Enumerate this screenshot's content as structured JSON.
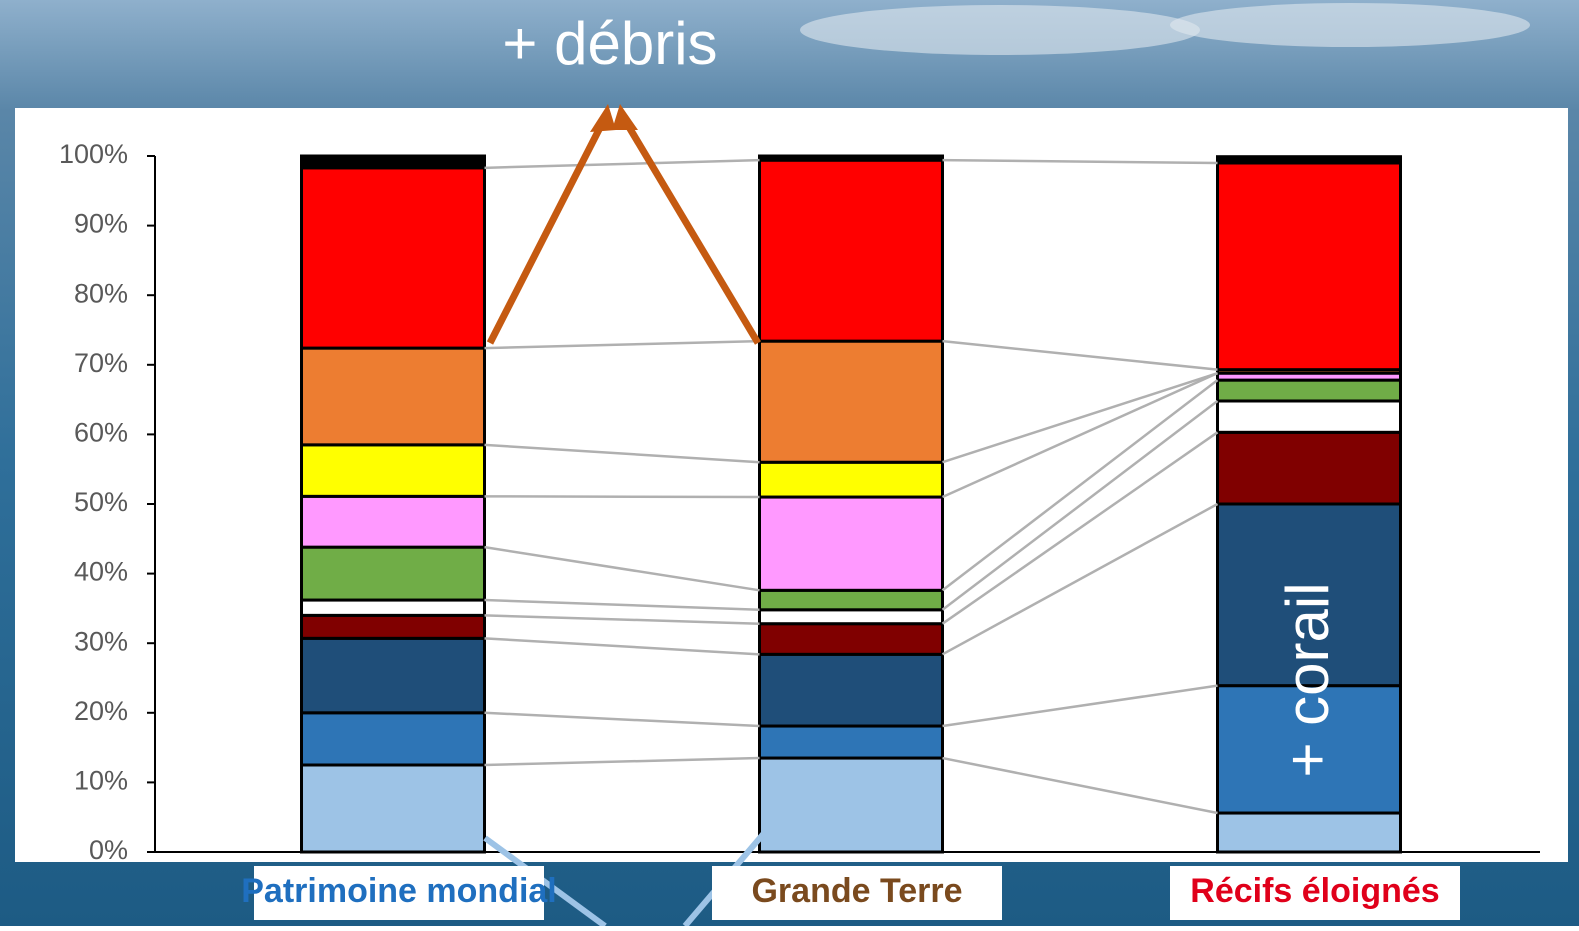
{
  "chart_data": {
    "type": "stacked_bar",
    "annotations": [
      "+ débris",
      "+ corail"
    ],
    "categories": [
      "Patrimoine mondial",
      "Grande Terre",
      "Récifs éloignés"
    ],
    "category_colors": [
      "#1f6fbf",
      "#7a4a1e",
      "#e0001a"
    ],
    "ylim": [
      0,
      100
    ],
    "yticks": [
      {
        "value": 0,
        "label": "0%"
      },
      {
        "value": 10,
        "label": "10%"
      },
      {
        "value": 20,
        "label": "20%"
      },
      {
        "value": 30,
        "label": "30%"
      },
      {
        "value": 40,
        "label": "40%"
      },
      {
        "value": 50,
        "label": "50%"
      },
      {
        "value": 60,
        "label": "60%"
      },
      {
        "value": 70,
        "label": "70%"
      },
      {
        "value": 80,
        "label": "80%"
      },
      {
        "value": 90,
        "label": "90%"
      },
      {
        "value": 100,
        "label": "100%"
      }
    ],
    "series": [
      {
        "color": "#9dc3e6",
        "values": [
          12.5,
          13.5,
          5.6
        ]
      },
      {
        "color": "#2e75b6",
        "values": [
          7.5,
          4.6,
          18.3
        ]
      },
      {
        "color": "#1f4e79",
        "values": [
          10.7,
          10.3,
          26.1
        ]
      },
      {
        "color": "#800000",
        "values": [
          3.3,
          4.4,
          10.3
        ]
      },
      {
        "color": "#ffffff",
        "values": [
          2.2,
          2.0,
          4.5
        ]
      },
      {
        "color": "#70ad47",
        "values": [
          7.6,
          2.8,
          3.0
        ]
      },
      {
        "color": "#ff99ff",
        "values": [
          7.3,
          13.4,
          1.0
        ]
      },
      {
        "color": "#ffff00",
        "values": [
          7.4,
          5.0,
          0
        ]
      },
      {
        "color": "#ed7d31",
        "values": [
          13.9,
          17.4,
          0.5
        ]
      },
      {
        "color": "#ff0000",
        "values": [
          25.9,
          26.0,
          29.7
        ]
      },
      {
        "color": "#000000",
        "values": [
          1.7,
          0.6,
          0.9
        ]
      }
    ]
  }
}
